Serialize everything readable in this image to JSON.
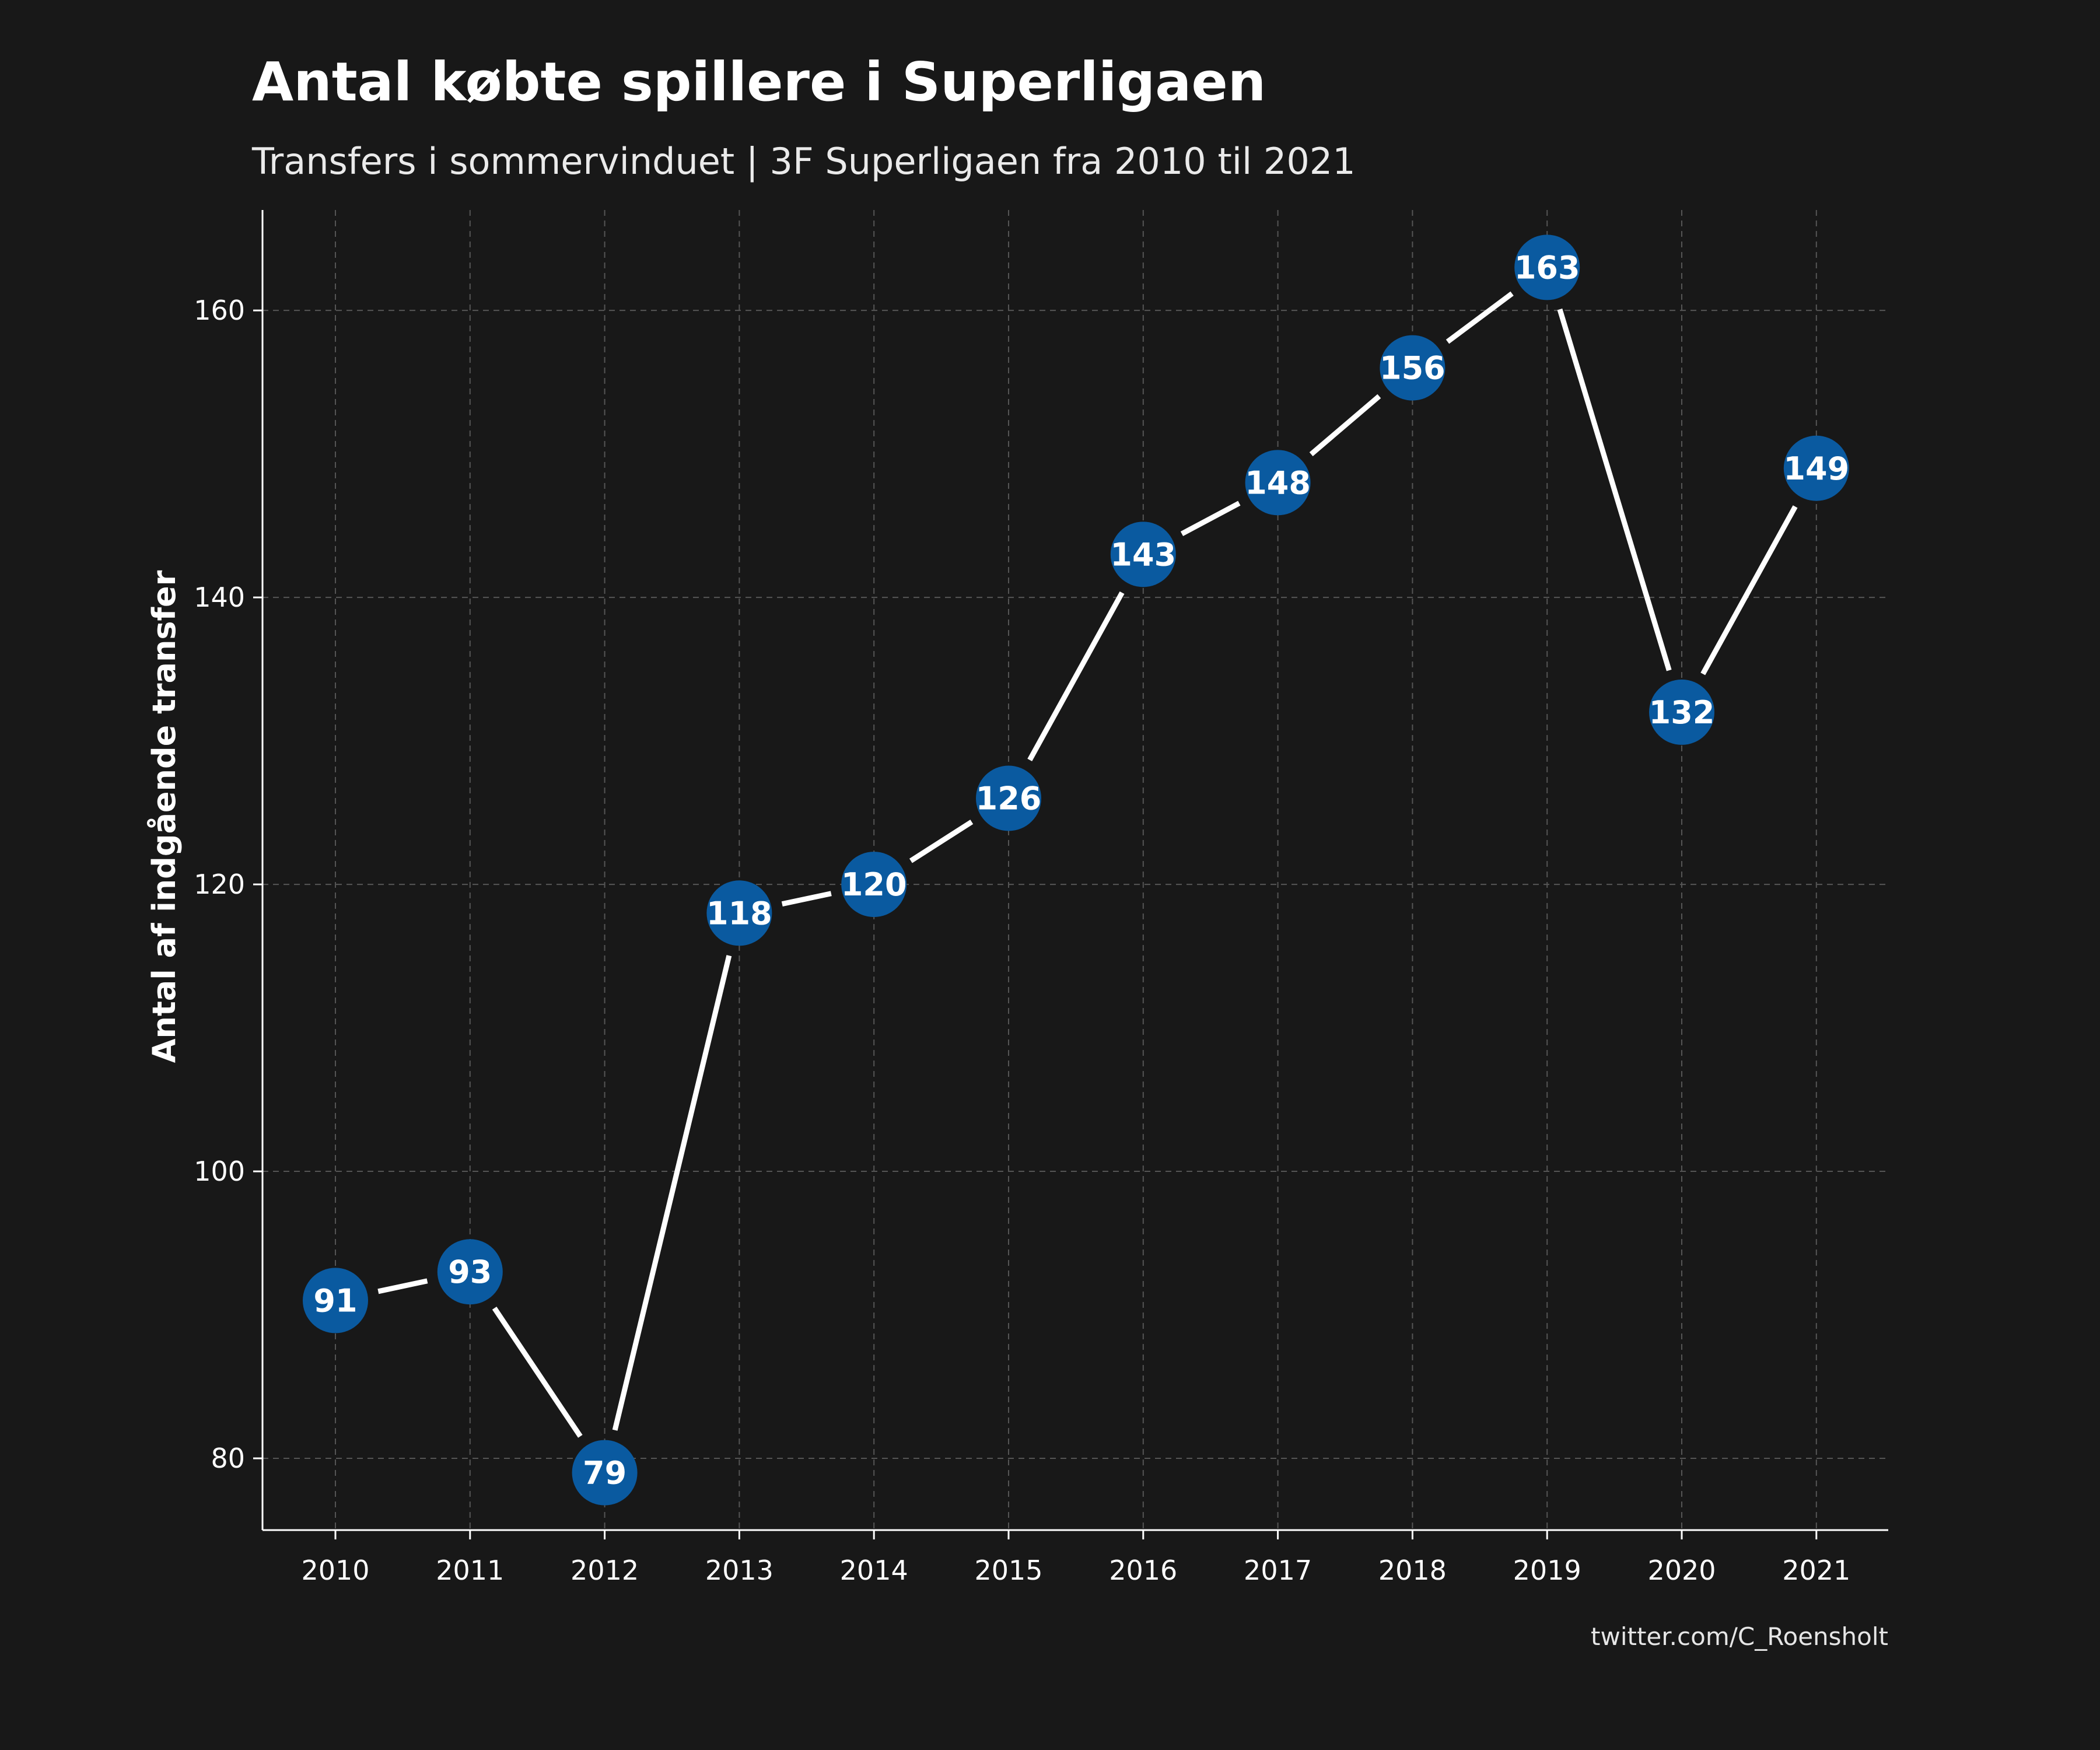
{
  "chart_data": {
    "type": "line",
    "title": "Antal købte spillere i Superligaen",
    "subtitle": "Transfers i sommervinduet | 3F Superligaen fra 2010 til 2021",
    "xlabel": "",
    "ylabel": "Antal af indgående transfer",
    "caption": "twitter.com/C_Roensholt",
    "categories": [
      "2010",
      "2011",
      "2012",
      "2013",
      "2014",
      "2015",
      "2016",
      "2017",
      "2018",
      "2019",
      "2020",
      "2021"
    ],
    "values": [
      91,
      93,
      79,
      118,
      120,
      126,
      143,
      148,
      156,
      163,
      132,
      149
    ],
    "yticks": [
      80,
      100,
      120,
      140,
      160
    ],
    "ylim": [
      75,
      167
    ],
    "grid": true,
    "legend": "none",
    "colors": {
      "background": "#181818",
      "point": "#0a5aa0",
      "line": "#ffffff",
      "grid": "#555555",
      "axis": "#ffffff"
    }
  }
}
